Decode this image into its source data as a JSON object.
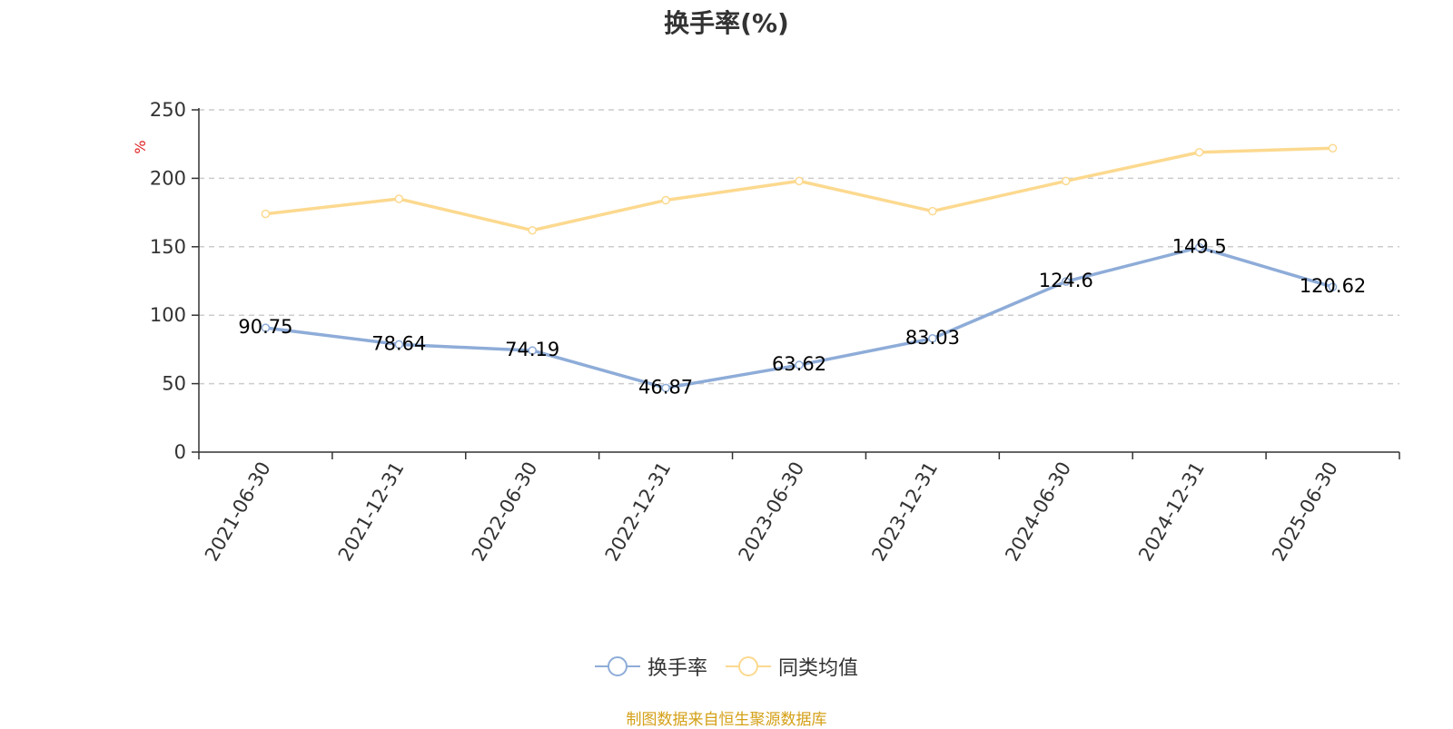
{
  "chart_data": {
    "type": "line",
    "title": "换手率(%)",
    "ylabel": "%",
    "ylim": [
      0,
      250
    ],
    "yticks": [
      0,
      50,
      100,
      150,
      200,
      250
    ],
    "grid": true,
    "legend_position": "bottom",
    "categories": [
      "2021-06-30",
      "2021-12-31",
      "2022-06-30",
      "2022-12-31",
      "2023-06-30",
      "2023-12-31",
      "2024-06-30",
      "2024-12-31",
      "2025-06-30"
    ],
    "series": [
      {
        "name": "换手率",
        "color": "#8eacd8",
        "values": [
          90.75,
          78.64,
          74.19,
          46.87,
          63.62,
          83.03,
          124.6,
          149.5,
          120.62
        ],
        "labels": [
          "90.75",
          "78.64",
          "74.19",
          "46.87",
          "63.62",
          "83.03",
          "124.6",
          "149.5",
          "120.62"
        ]
      },
      {
        "name": "同类均值",
        "color": "#fcd98f",
        "values": [
          174,
          185,
          162,
          184,
          198,
          176,
          198,
          219,
          222
        ]
      }
    ]
  },
  "footer": {
    "source": "制图数据来自恒生聚源数据库"
  }
}
